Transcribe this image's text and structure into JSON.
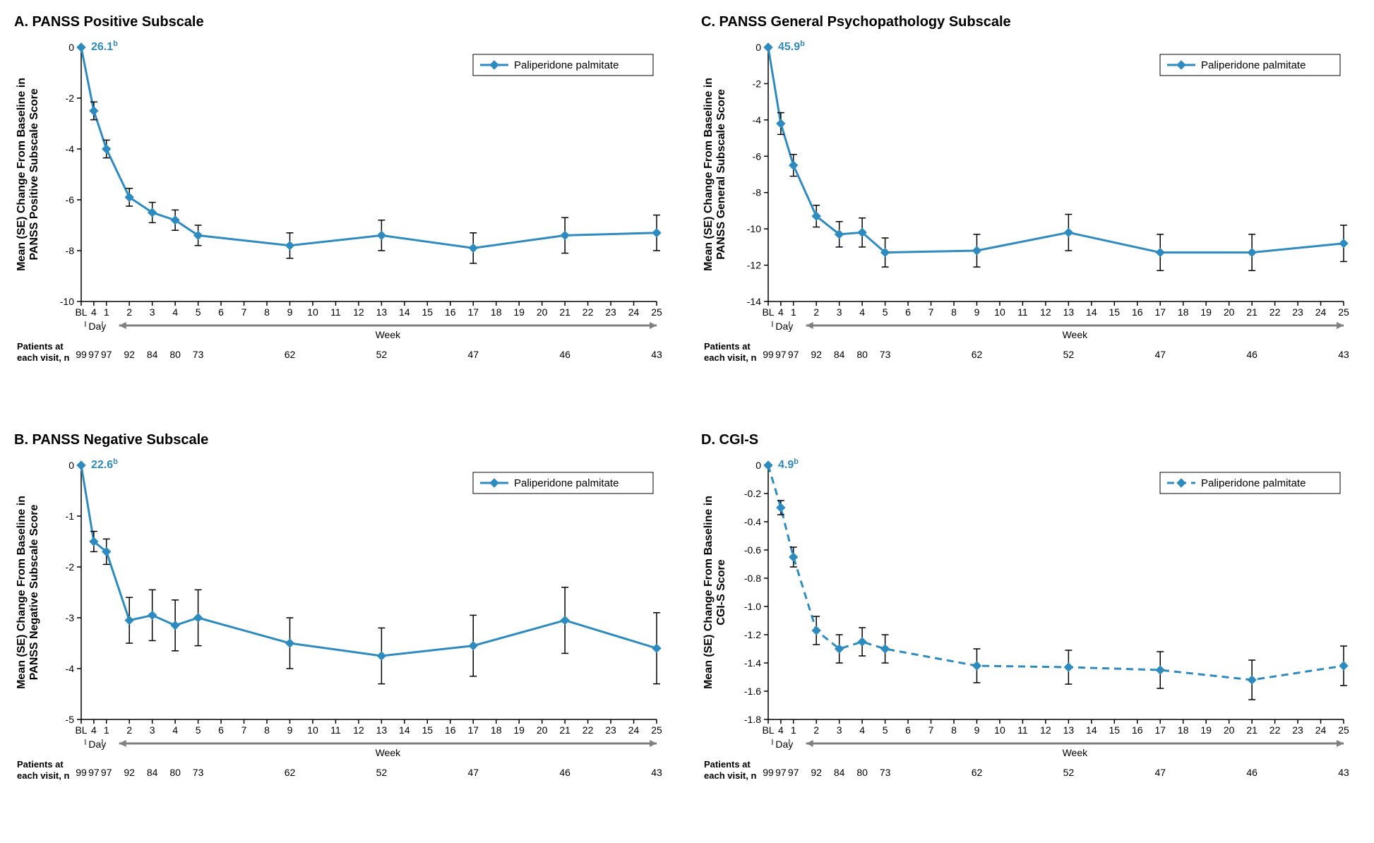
{
  "legend_label": "Paliperidone palmitate",
  "series_color": "#2e8bc0",
  "errorbar_color": "#000000",
  "background_color": "#ffffff",
  "axis_color": "#000000",
  "grid_arrow_color": "#808080",
  "title_fontsize": 20,
  "axis_label_fontsize": 16,
  "tick_fontsize": 14,
  "line_width": 3,
  "marker_size": 6,
  "x_categories": [
    "BL",
    "4",
    "1",
    "2",
    "3",
    "4",
    "5",
    "6",
    "7",
    "8",
    "9",
    "10",
    "11",
    "12",
    "13",
    "14",
    "15",
    "16",
    "17",
    "18",
    "19",
    "20",
    "21",
    "22",
    "23",
    "24",
    "25"
  ],
  "x_day_label": "Day",
  "x_week_label": "Week",
  "patients_label": "Patients at each visit, n",
  "patients_n": {
    "BL": "99",
    "D4": "97",
    "W1": "97",
    "W2": "92",
    "W3": "84",
    "W4": "80",
    "W5": "73",
    "W9": "62",
    "W13": "52",
    "W17": "47",
    "W21": "46",
    "W25": "43"
  },
  "panels": {
    "A": {
      "title": "A. PANSS Positive Subscale",
      "ylabel": "Mean (SE) Change From Baseline in\nPANSS Positive Subscale Score",
      "baseline_label": "26.1",
      "baseline_superscript": "b",
      "ylim": [
        -10,
        0
      ],
      "ytick_step": 2,
      "dashed": false,
      "points": [
        {
          "x": "BL",
          "y": 0,
          "se": 0
        },
        {
          "x": "D4",
          "y": -2.5,
          "se": 0.35
        },
        {
          "x": "W1",
          "y": -4.0,
          "se": 0.35
        },
        {
          "x": "W2",
          "y": -5.9,
          "se": 0.35
        },
        {
          "x": "W3",
          "y": -6.5,
          "se": 0.4
        },
        {
          "x": "W4",
          "y": -6.8,
          "se": 0.4
        },
        {
          "x": "W5",
          "y": -7.4,
          "se": 0.4
        },
        {
          "x": "W9",
          "y": -7.8,
          "se": 0.5
        },
        {
          "x": "W13",
          "y": -7.4,
          "se": 0.6
        },
        {
          "x": "W17",
          "y": -7.9,
          "se": 0.6
        },
        {
          "x": "W21",
          "y": -7.4,
          "se": 0.7
        },
        {
          "x": "W25",
          "y": -7.3,
          "se": 0.7
        }
      ]
    },
    "B": {
      "title": "B. PANSS Negative Subscale",
      "ylabel": "Mean (SE) Change From Baseline in\nPANSS Negative Subscale Score",
      "baseline_label": "22.6",
      "baseline_superscript": "b",
      "ylim": [
        -5,
        0
      ],
      "ytick_step": 1,
      "dashed": false,
      "points": [
        {
          "x": "BL",
          "y": 0,
          "se": 0
        },
        {
          "x": "D4",
          "y": -1.5,
          "se": 0.2
        },
        {
          "x": "W1",
          "y": -1.7,
          "se": 0.25
        },
        {
          "x": "W2",
          "y": -3.05,
          "se": 0.45
        },
        {
          "x": "W3",
          "y": -2.95,
          "se": 0.5
        },
        {
          "x": "W4",
          "y": -3.15,
          "se": 0.5
        },
        {
          "x": "W5",
          "y": -3.0,
          "se": 0.55
        },
        {
          "x": "W9",
          "y": -3.5,
          "se": 0.5
        },
        {
          "x": "W13",
          "y": -3.75,
          "se": 0.55
        },
        {
          "x": "W17",
          "y": -3.55,
          "se": 0.6
        },
        {
          "x": "W21",
          "y": -3.05,
          "se": 0.65
        },
        {
          "x": "W25",
          "y": -3.6,
          "se": 0.7
        }
      ]
    },
    "C": {
      "title": "C. PANSS General Psychopathology Subscale",
      "ylabel": "Mean (SE) Change From Baseline in\nPANSS General Subscale Score",
      "baseline_label": "45.9",
      "baseline_superscript": "b",
      "ylim": [
        -14,
        0
      ],
      "ytick_step": 2,
      "dashed": false,
      "points": [
        {
          "x": "BL",
          "y": 0,
          "se": 0
        },
        {
          "x": "D4",
          "y": -4.2,
          "se": 0.6
        },
        {
          "x": "W1",
          "y": -6.5,
          "se": 0.6
        },
        {
          "x": "W2",
          "y": -9.3,
          "se": 0.6
        },
        {
          "x": "W3",
          "y": -10.3,
          "se": 0.7
        },
        {
          "x": "W4",
          "y": -10.2,
          "se": 0.8
        },
        {
          "x": "W5",
          "y": -11.3,
          "se": 0.8
        },
        {
          "x": "W9",
          "y": -11.2,
          "se": 0.9
        },
        {
          "x": "W13",
          "y": -10.2,
          "se": 1.0
        },
        {
          "x": "W17",
          "y": -11.3,
          "se": 1.0
        },
        {
          "x": "W21",
          "y": -11.3,
          "se": 1.0
        },
        {
          "x": "W25",
          "y": -10.8,
          "se": 1.0
        }
      ]
    },
    "D": {
      "title": "D. CGI-S",
      "ylabel": "Mean (SE) Change From Baseline in\nCGI-S Score",
      "baseline_label": "4.9",
      "baseline_superscript": "b",
      "ylim": [
        -1.8,
        0
      ],
      "ytick_step": 0.2,
      "dashed": true,
      "points": [
        {
          "x": "BL",
          "y": 0,
          "se": 0
        },
        {
          "x": "D4",
          "y": -0.3,
          "se": 0.05
        },
        {
          "x": "W1",
          "y": -0.65,
          "se": 0.07
        },
        {
          "x": "W2",
          "y": -1.17,
          "se": 0.1
        },
        {
          "x": "W3",
          "y": -1.3,
          "se": 0.1
        },
        {
          "x": "W4",
          "y": -1.25,
          "se": 0.1
        },
        {
          "x": "W5",
          "y": -1.3,
          "se": 0.1
        },
        {
          "x": "W9",
          "y": -1.42,
          "se": 0.12
        },
        {
          "x": "W13",
          "y": -1.43,
          "se": 0.12
        },
        {
          "x": "W17",
          "y": -1.45,
          "se": 0.13
        },
        {
          "x": "W21",
          "y": -1.52,
          "se": 0.14
        },
        {
          "x": "W25",
          "y": -1.42,
          "se": 0.14
        }
      ]
    }
  }
}
